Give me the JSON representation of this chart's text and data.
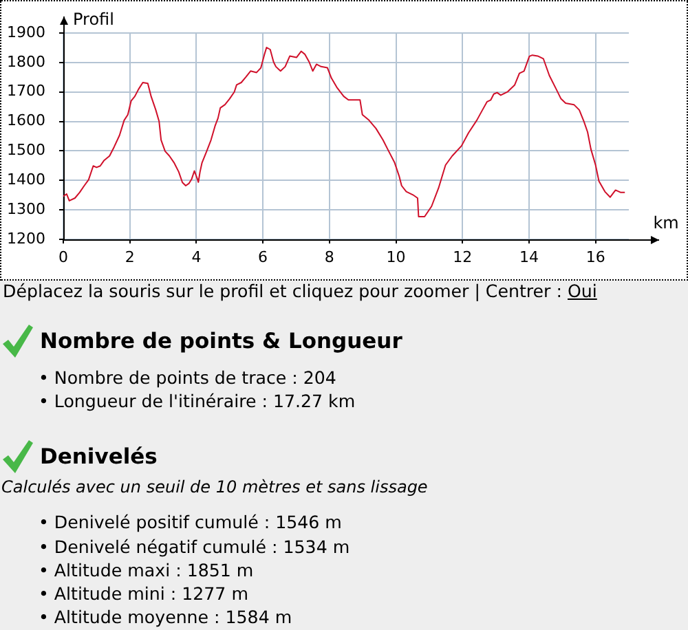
{
  "chart_data": {
    "type": "line",
    "xlabel": "km",
    "ylabel": "Profil",
    "color": "#d0102a",
    "x": [
      0,
      0.1,
      0.18,
      0.35,
      0.49,
      0.63,
      0.76,
      0.9,
      1.0,
      1.11,
      1.22,
      1.39,
      1.53,
      1.69,
      1.83,
      1.94,
      2.04,
      2.15,
      2.26,
      2.39,
      2.54,
      2.64,
      2.78,
      2.88,
      2.94,
      3.06,
      3.19,
      3.33,
      3.47,
      3.58,
      3.68,
      3.78,
      3.86,
      3.94,
      4.03,
      4.06,
      4.11,
      4.17,
      4.31,
      4.44,
      4.56,
      4.65,
      4.72,
      4.86,
      5.0,
      5.14,
      5.21,
      5.35,
      5.49,
      5.63,
      5.81,
      5.94,
      6.04,
      6.11,
      6.22,
      6.32,
      6.39,
      6.53,
      6.67,
      6.81,
      7.01,
      7.15,
      7.26,
      7.39,
      7.5,
      7.61,
      7.75,
      7.94,
      8.06,
      8.22,
      8.43,
      8.57,
      8.92,
      8.99,
      9.19,
      9.4,
      9.61,
      9.75,
      9.96,
      10.1,
      10.17,
      10.31,
      10.51,
      10.65,
      10.68,
      10.86,
      11.07,
      11.28,
      11.49,
      11.69,
      11.97,
      12.18,
      12.43,
      12.6,
      12.74,
      12.85,
      12.94,
      13.04,
      13.15,
      13.36,
      13.57,
      13.71,
      13.85,
      14.01,
      14.1,
      14.26,
      14.43,
      14.61,
      14.82,
      14.96,
      15.1,
      15.35,
      15.51,
      15.65,
      15.76,
      15.86,
      16.0,
      16.1,
      16.28,
      16.44,
      16.6,
      16.76,
      16.88
    ],
    "values": [
      1346,
      1354,
      1331,
      1340,
      1359,
      1382,
      1402,
      1449,
      1444,
      1449,
      1467,
      1483,
      1514,
      1553,
      1604,
      1623,
      1670,
      1685,
      1709,
      1732,
      1729,
      1685,
      1639,
      1600,
      1537,
      1499,
      1483,
      1460,
      1429,
      1393,
      1382,
      1390,
      1405,
      1432,
      1405,
      1394,
      1429,
      1460,
      1499,
      1537,
      1584,
      1611,
      1646,
      1657,
      1677,
      1700,
      1724,
      1732,
      1751,
      1771,
      1766,
      1782,
      1825,
      1851,
      1844,
      1802,
      1786,
      1771,
      1786,
      1822,
      1817,
      1838,
      1828,
      1802,
      1771,
      1794,
      1786,
      1782,
      1747,
      1716,
      1685,
      1673,
      1673,
      1623,
      1604,
      1576,
      1537,
      1506,
      1460,
      1413,
      1382,
      1362,
      1351,
      1340,
      1277,
      1277,
      1312,
      1374,
      1452,
      1483,
      1517,
      1561,
      1604,
      1639,
      1667,
      1673,
      1693,
      1698,
      1689,
      1701,
      1724,
      1763,
      1771,
      1821,
      1825,
      1822,
      1813,
      1756,
      1709,
      1677,
      1662,
      1657,
      1639,
      1600,
      1564,
      1506,
      1452,
      1398,
      1362,
      1343,
      1367,
      1359,
      1359
    ],
    "xlim": [
      0,
      17
    ],
    "xticks": [
      0,
      2,
      4,
      6,
      8,
      10,
      12,
      14,
      16
    ],
    "ylim": [
      1200,
      1900
    ],
    "yticks": [
      1200,
      1300,
      1400,
      1500,
      1600,
      1700,
      1800,
      1900
    ],
    "grid": true,
    "annotations": [
      "Déplacez la souris sur le profil et cliquez pour zoomer | Centrer : Oui",
      "Nombre de points & Longueur",
      "• Nombre de points de trace : 204",
      "• Longueur de l'itinéraire : 17.27 km",
      "Denivelés",
      "Calculés avec un seuil de 10 mètres et sans lissage",
      "• Denivelé positif cumulé : 1546 m",
      "• Denivelé négatif cumulé : 1534 m",
      "• Altitude maxi : 1851 m",
      "• Altitude mini : 1277 m",
      "• Altitude moyenne : 1584 m"
    ]
  }
}
